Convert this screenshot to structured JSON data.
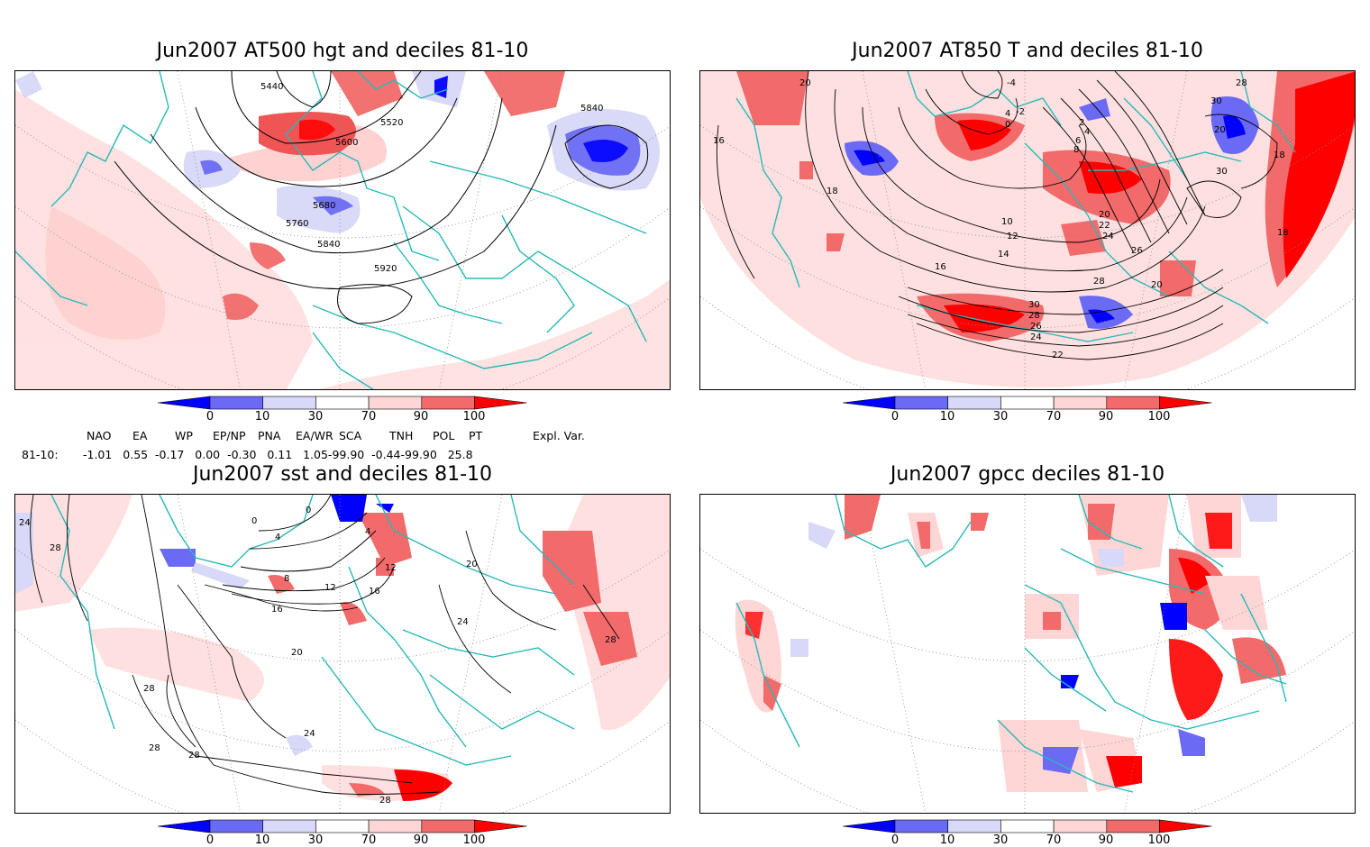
{
  "panels": [
    {
      "id": "p1",
      "title": "Jun2007 AT500 hgt and deciles 81-10",
      "contour_labels": [
        "5440",
        "5520",
        "5600",
        "5680",
        "5760",
        "5840",
        "5840",
        "5920"
      ]
    },
    {
      "id": "p2",
      "title": "Jun2007 AT850 T and deciles 81-10",
      "contour_labels": [
        "20",
        "16",
        "-4",
        "-2",
        "4",
        "0",
        "2",
        "4",
        "6",
        "8",
        "10",
        "12",
        "14",
        "16",
        "18",
        "20",
        "22",
        "24",
        "26",
        "28",
        "30",
        "28",
        "26",
        "24",
        "22",
        "20",
        "18",
        "20",
        "30",
        "30",
        "28",
        "26",
        "18"
      ]
    },
    {
      "id": "p3",
      "title": "Jun2007 sst and deciles 81-10",
      "contour_labels": [
        "24",
        "28",
        "0",
        "0",
        "4",
        "4",
        "8",
        "12",
        "16",
        "20",
        "24",
        "28",
        "28",
        "28",
        "28",
        "24",
        "20",
        "16",
        "12",
        "28"
      ]
    },
    {
      "id": "p4",
      "title": "Jun2007 gpcc deciles 81-10",
      "contour_labels": []
    }
  ],
  "colorbar": {
    "labels": [
      "0",
      "10",
      "30",
      "70",
      "90",
      "100"
    ],
    "colors": [
      "#0000ff",
      "#6a6af5",
      "#d8d8f8",
      "#ffffff",
      "#ffd6d6",
      "#f26a6a",
      "#ff0000"
    ]
  },
  "teleconnections": {
    "headers": [
      "NAO",
      "EA",
      "WP",
      "EP/NP",
      "PNA",
      "EA/WR",
      "SCA",
      "TNH",
      "POL",
      "PT",
      "Expl. Var."
    ],
    "row_label": "81-10:",
    "values_text": "-1.01   0.55  -0.17   0.00  -0.30   0.11   1.05-99.90  -0.44-99.90   25.8"
  }
}
